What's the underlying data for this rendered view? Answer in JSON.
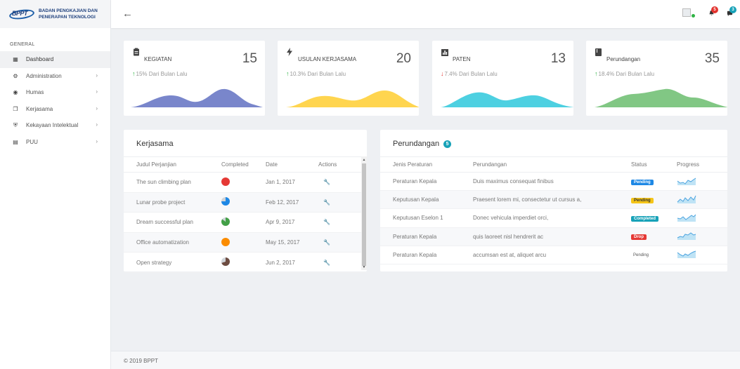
{
  "brand": {
    "logo_text": "BPPT",
    "name_line1": "BADAN PENGKAJIAN DAN",
    "name_line2": "PENERAPAN TEKNOLOGI"
  },
  "sidebar": {
    "section": "GENERAL",
    "items": [
      {
        "label": "Dashboard",
        "icon": "grid-icon",
        "active": true,
        "has_children": false
      },
      {
        "label": "Administration",
        "icon": "gear-icon",
        "active": false,
        "has_children": true
      },
      {
        "label": "Humas",
        "icon": "globe-icon",
        "active": false,
        "has_children": true
      },
      {
        "label": "Kerjasama",
        "icon": "copy-icon",
        "active": false,
        "has_children": true
      },
      {
        "label": "Kekayaan Intelektual",
        "icon": "shield-icon",
        "active": false,
        "has_children": true
      },
      {
        "label": "PUU",
        "icon": "book-icon",
        "active": false,
        "has_children": true
      }
    ]
  },
  "topbar": {
    "back_icon": "arrow-left-icon",
    "notifications": {
      "icon": "bell-icon",
      "count": "5",
      "color": "#e3342f"
    },
    "messages": {
      "icon": "chat-icon",
      "count": "3",
      "color": "#17a2b8"
    }
  },
  "stats": [
    {
      "title": "KEGIATAN",
      "value": "15",
      "change": "15% Dari Bulan Lalu",
      "trend": "up",
      "icon": "clipboard-icon",
      "color": "#7986cb"
    },
    {
      "title": "USULAN KERJASAMA",
      "value": "20",
      "change": "10.3% Dari Bulan Lalu",
      "trend": "up",
      "icon": "bolt-icon",
      "color": "#ffd54f"
    },
    {
      "title": "PATEN",
      "value": "13",
      "change": "7.4% Dari Bulan Lalu",
      "trend": "down",
      "icon": "chart-icon",
      "color": "#4dd0e1"
    },
    {
      "title": "Perundangan",
      "value": "35",
      "change": "18.4% Dari Bulan Lalu",
      "trend": "up",
      "icon": "book-icon",
      "color": "#81c784"
    }
  ],
  "kerjasama": {
    "title": "Kerjasama",
    "columns": [
      "Judul Perjanjian",
      "Completed",
      "Date",
      "Actions"
    ],
    "rows": [
      {
        "title": "The sun climbing plan",
        "completed": 1.0,
        "color": "#e53935",
        "date": "Jan 1, 2017"
      },
      {
        "title": "Lunar probe project",
        "completed": 0.75,
        "color": "#1e88e5",
        "date": "Feb 12, 2017"
      },
      {
        "title": "Dream successful plan",
        "completed": 0.85,
        "color": "#43a047",
        "date": "Apr 9, 2017"
      },
      {
        "title": "Office automatization",
        "completed": 1.0,
        "color": "#fb8c00",
        "date": "May 15, 2017"
      },
      {
        "title": "Open strategy",
        "completed": 0.7,
        "color": "#6d4c41",
        "date": "Jun 2, 2017"
      }
    ]
  },
  "perundangan": {
    "title": "Perundangan",
    "count": "5",
    "columns": [
      "Jenis Peraturan",
      "Perundangan",
      "Status",
      "Progress"
    ],
    "rows": [
      {
        "type": "Peraturan Kepala",
        "text": "Duis maximus consequat finibus",
        "status": "Pending",
        "status_color": "#1e88e5"
      },
      {
        "type": "Keputusan Kepala",
        "text": "Praesent lorem mi, consectetur ut cursus a,",
        "status": "Pending",
        "status_color": "#f5c518"
      },
      {
        "type": "Keputusan Eselon 1",
        "text": "Donec vehicula imperdiet orci,",
        "status": "Completed",
        "status_color": "#17a2b8"
      },
      {
        "type": "Peraturan Kepala",
        "text": "quis laoreet nisl hendrerit ac",
        "status": "Drop",
        "status_color": "#e53935"
      },
      {
        "type": "Peraturan Kepala",
        "text": "accumsan est at, aliquet arcu",
        "status": "Pending",
        "status_color": "none"
      }
    ]
  },
  "footer": {
    "text": "© 2019 BPPT"
  }
}
